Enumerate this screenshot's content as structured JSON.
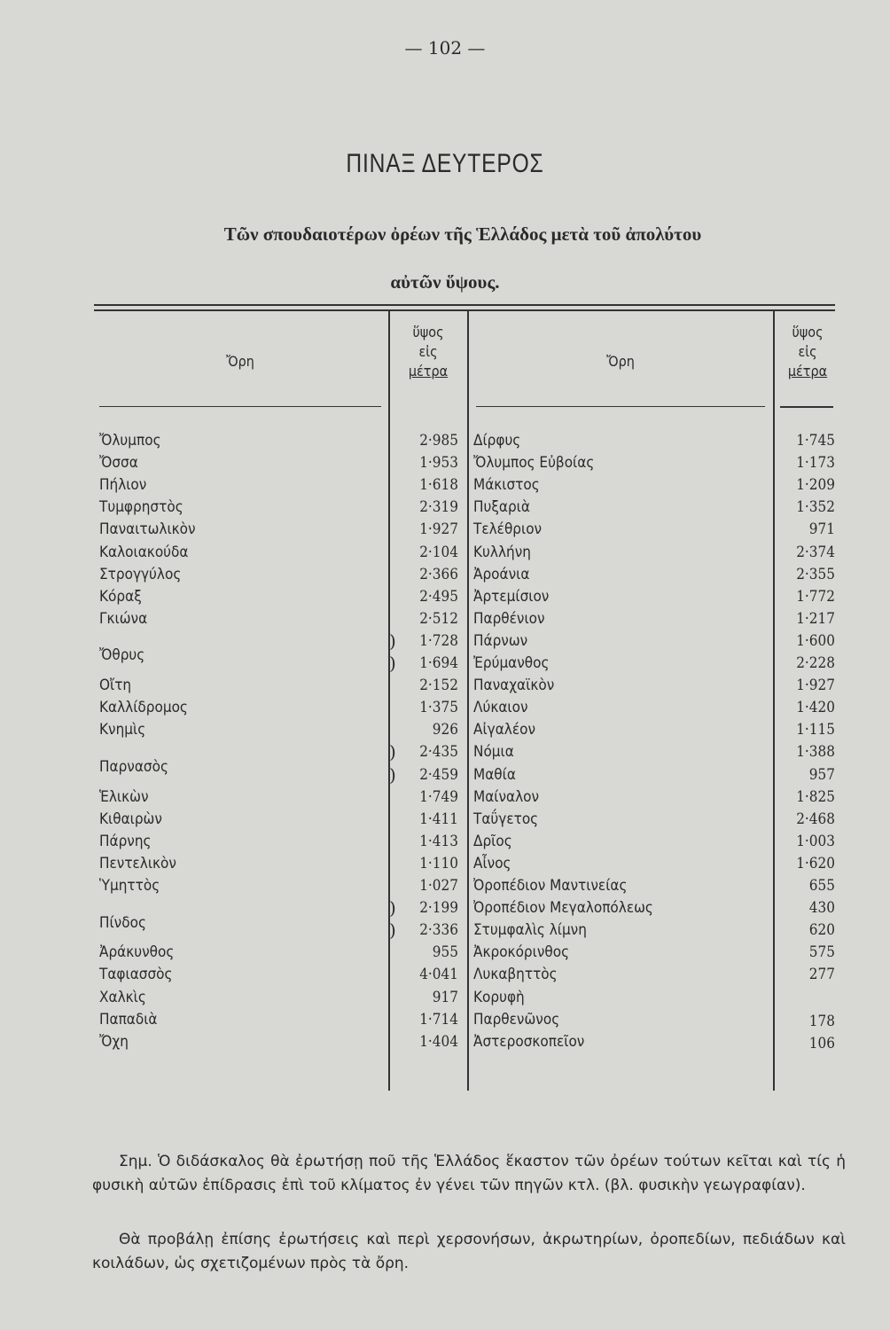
{
  "page_number": "— 102 —",
  "title": "ΠΙΝΑΞ ΔΕΥΤΕΡΟΣ",
  "subtitle_line1": "Τῶν σπουδαιοτέρων ὀρέων τῆς Ἑλλάδος μετὰ τοῦ ἀπολύτου",
  "subtitle_line2": "αὐτῶν ὕψους.",
  "table": {
    "headers": {
      "mountains": "Ὄρη",
      "height_l1": "ὕψος",
      "height_l2": "εἰς",
      "height_l3": "μέτρα"
    },
    "left_groups": [
      {
        "name": "Ὄλυμπος",
        "heights": [
          "2·985"
        ]
      },
      {
        "name": "Ὄσσα",
        "heights": [
          "1·953"
        ]
      },
      {
        "name": "Πήλιον",
        "heights": [
          "1·618"
        ]
      },
      {
        "name": "Τυμφρηστὸς",
        "heights": [
          "2·319"
        ]
      },
      {
        "name": "Παναιτωλικὸν",
        "heights": [
          "1·927"
        ]
      },
      {
        "name": "Καλοιακούδα",
        "heights": [
          "2·104"
        ]
      },
      {
        "name": "Στρογγύλος",
        "heights": [
          "2·366"
        ]
      },
      {
        "name": "Κόραξ",
        "heights": [
          "2·495"
        ]
      },
      {
        "name": "Γκιώνα",
        "heights": [
          "2·512"
        ]
      },
      {
        "name": "Ὄθρυς",
        "heights": [
          "1·728",
          "1·694"
        ]
      },
      {
        "name": "Οἴτη",
        "heights": [
          "2·152"
        ]
      },
      {
        "name": "Καλλίδρομος",
        "heights": [
          "1·375"
        ]
      },
      {
        "name": "Κνημὶς",
        "heights": [
          "926"
        ]
      },
      {
        "name": "Παρνασὸς",
        "heights": [
          "2·435",
          "2·459"
        ]
      },
      {
        "name": "Ἑλικὼν",
        "heights": [
          "1·749"
        ]
      },
      {
        "name": "Κιθαιρὼν",
        "heights": [
          "1·411"
        ]
      },
      {
        "name": "Πάρνης",
        "heights": [
          "1·413"
        ]
      },
      {
        "name": "Πεντελικὸν",
        "heights": [
          "1·110"
        ]
      },
      {
        "name": "Ὑμηττὸς",
        "heights": [
          "1·027"
        ]
      },
      {
        "name": "Πίνδος",
        "heights": [
          "2·199",
          "2·336"
        ]
      },
      {
        "name": "Ἀράκυνθος",
        "heights": [
          "955"
        ]
      },
      {
        "name": "Ταφιασσὸς",
        "heights": [
          "4·041"
        ]
      },
      {
        "name": "Χαλκὶς",
        "heights": [
          "917"
        ]
      },
      {
        "name": "Παπαδιὰ",
        "heights": [
          "1·714"
        ]
      },
      {
        "name": "Ὄχη",
        "heights": [
          "1·404"
        ]
      }
    ],
    "right_rows": [
      {
        "name": "Δίρφυς",
        "height": "1·745"
      },
      {
        "name": "Ὄλυμπος Εὐβοίας",
        "height": "1·173"
      },
      {
        "name": "Μάκιστος",
        "height": "1·209"
      },
      {
        "name": "Πυξαριὰ",
        "height": "1·352"
      },
      {
        "name": "Τελέθριον",
        "height": "971"
      },
      {
        "name": "Κυλλήνη",
        "height": "2·374"
      },
      {
        "name": "Ἀροάνια",
        "height": "2·355"
      },
      {
        "name": "Ἀρτεμίσιον",
        "height": "1·772"
      },
      {
        "name": "Παρθένιον",
        "height": "1·217"
      },
      {
        "name": "Πάρνων",
        "height": "1·600"
      },
      {
        "name": "Ἐρύμανθος",
        "height": "2·228"
      },
      {
        "name": "Παναχαϊκὸν",
        "height": "1·927"
      },
      {
        "name": "Λύκαιον",
        "height": "1·420"
      },
      {
        "name": "Αἰγαλέον",
        "height": "1·115"
      },
      {
        "name": "Νόμια",
        "height": "1·388"
      },
      {
        "name": "Μαθία",
        "height": "957"
      },
      {
        "name": "Μαίναλον",
        "height": "1·825"
      },
      {
        "name": "Ταΰγετος",
        "height": "2·468"
      },
      {
        "name": "Δρῖος",
        "height": "1·003"
      },
      {
        "name": "Αἶνος",
        "height": "1·620"
      },
      {
        "name": "Ὀροπέδιον Μαντινείας",
        "height": "655"
      },
      {
        "name": "Ὀροπέδιον Μεγαλοπόλεως",
        "height": "430"
      },
      {
        "name": "Στυμφαλὶς λίμνη",
        "height": "620"
      },
      {
        "name": "Ἀκροκόρινθος",
        "height": "575"
      },
      {
        "name": "Λυκαβηττὸς",
        "height": "277"
      },
      {
        "name": "Κορυφὴ",
        "height": ""
      },
      {
        "name": "Παρθενῶνος",
        "height": "178"
      },
      {
        "name": "Ἀστεροσκοπεῖον",
        "height": "106"
      }
    ]
  },
  "notes": [
    "Σημ. Ὁ διδάσκαλος θὰ ἐρωτήσῃ ποῦ τῆς Ἑλλάδος ἕκαστον τῶν ὀρέων τούτων κεῖται καὶ τίς ἡ φυσικὴ αὐτῶν ἐπίδρασις ἐπὶ τοῦ κλίματος ἐν γένει τῶν πηγῶν κτλ. (βλ. φυσικὴν γεωγραφίαν).",
    "Θὰ προβάλῃ ἐπίσης ἐρωτήσεις καὶ περὶ χερσονήσων, ἀκρωτηρίων, ὀροπεδίων, πεδιάδων καὶ κοιλάδων, ὡς σχετιζομένων πρὸς τὰ ὄρη."
  ]
}
